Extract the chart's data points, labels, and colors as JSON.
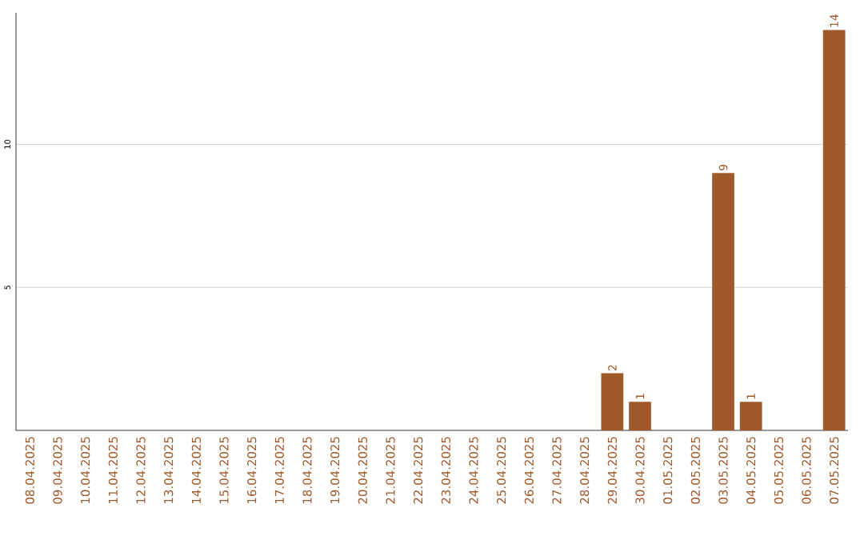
{
  "chart_data": {
    "type": "bar",
    "categories": [
      "08.04.2025",
      "09.04.2025",
      "10.04.2025",
      "11.04.2025",
      "12.04.2025",
      "13.04.2025",
      "14.04.2025",
      "15.04.2025",
      "16.04.2025",
      "17.04.2025",
      "18.04.2025",
      "19.04.2025",
      "20.04.2025",
      "21.04.2025",
      "22.04.2025",
      "23.04.2025",
      "24.04.2025",
      "25.04.2025",
      "26.04.2025",
      "27.04.2025",
      "28.04.2025",
      "29.04.2025",
      "30.04.2025",
      "01.05.2025",
      "02.05.2025",
      "03.05.2025",
      "04.05.2025",
      "05.05.2025",
      "06.05.2025",
      "07.05.2025"
    ],
    "values": [
      0,
      0,
      0,
      0,
      0,
      0,
      0,
      0,
      0,
      0,
      0,
      0,
      0,
      0,
      0,
      0,
      0,
      0,
      0,
      0,
      0,
      2,
      1,
      0,
      0,
      9,
      1,
      0,
      0,
      14
    ],
    "value_labels": [
      null,
      null,
      null,
      null,
      null,
      null,
      null,
      null,
      null,
      null,
      null,
      null,
      null,
      null,
      null,
      null,
      null,
      null,
      null,
      null,
      null,
      "2",
      "1",
      null,
      null,
      "9",
      "1",
      null,
      null,
      "14"
    ],
    "color": "#a0592b",
    "ylim": [
      0,
      14.6
    ],
    "yticks": [
      5,
      10
    ],
    "grid": "y"
  }
}
